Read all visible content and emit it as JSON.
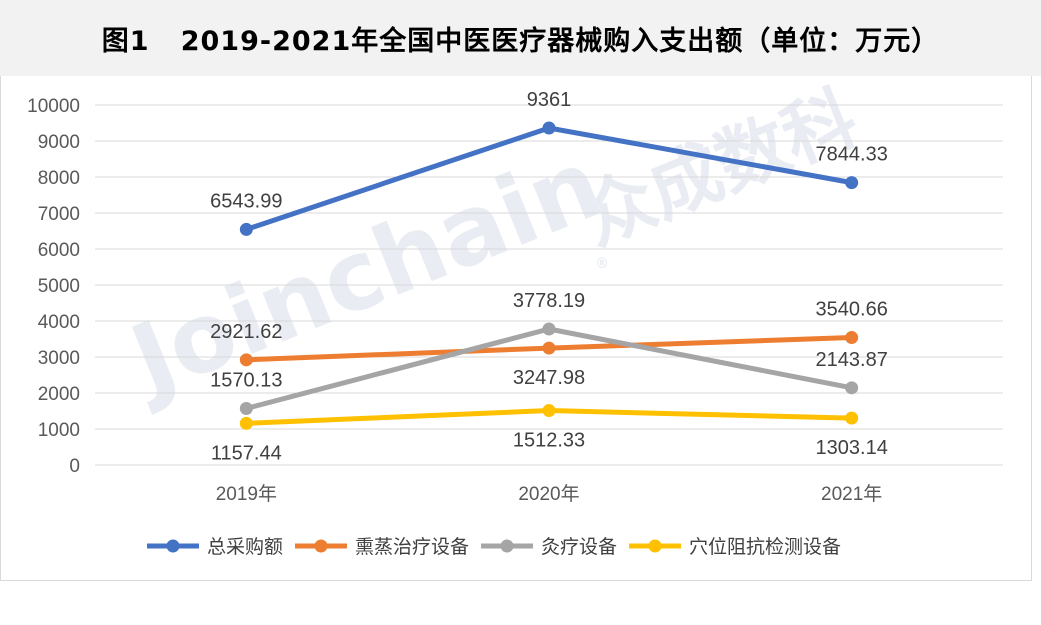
{
  "title": "图1   2019-2021年全国中医医疗器械购入支出额（单位：万元）",
  "watermark": {
    "brand": "Joinchain",
    "cn": "众成数科",
    "mark": "®"
  },
  "chart_data": {
    "type": "line",
    "categories": [
      "2019年",
      "2020年",
      "2021年"
    ],
    "ylim": [
      0,
      10000
    ],
    "yticks": [
      0,
      1000,
      2000,
      3000,
      4000,
      5000,
      6000,
      7000,
      8000,
      9000,
      10000
    ],
    "grid": true,
    "legend_position": "bottom",
    "series": [
      {
        "name": "总采购额",
        "color": "#4472c4",
        "values": [
          6543.99,
          9361,
          7844.33
        ],
        "labels": [
          "6543.99",
          "9361",
          "7844.33"
        ],
        "label_pos": [
          "above",
          "above",
          "above"
        ]
      },
      {
        "name": "熏蒸治疗设备",
        "color": "#ed7d31",
        "values": [
          2921.62,
          3247.98,
          3540.66
        ],
        "labels": [
          "2921.62",
          "3247.98",
          "3540.66"
        ],
        "label_pos": [
          "above",
          "below",
          "above"
        ]
      },
      {
        "name": "灸疗设备",
        "color": "#a5a5a5",
        "values": [
          1570.13,
          3778.19,
          2143.87
        ],
        "labels": [
          "1570.13",
          "3778.19",
          "2143.87"
        ],
        "label_pos": [
          "above",
          "above",
          "above"
        ]
      },
      {
        "name": "穴位阻抗检测设备",
        "color": "#ffc000",
        "values": [
          1157.44,
          1512.33,
          1303.14
        ],
        "labels": [
          "1157.44",
          "1512.33",
          "1303.14"
        ],
        "label_pos": [
          "below",
          "below",
          "below"
        ]
      }
    ]
  }
}
